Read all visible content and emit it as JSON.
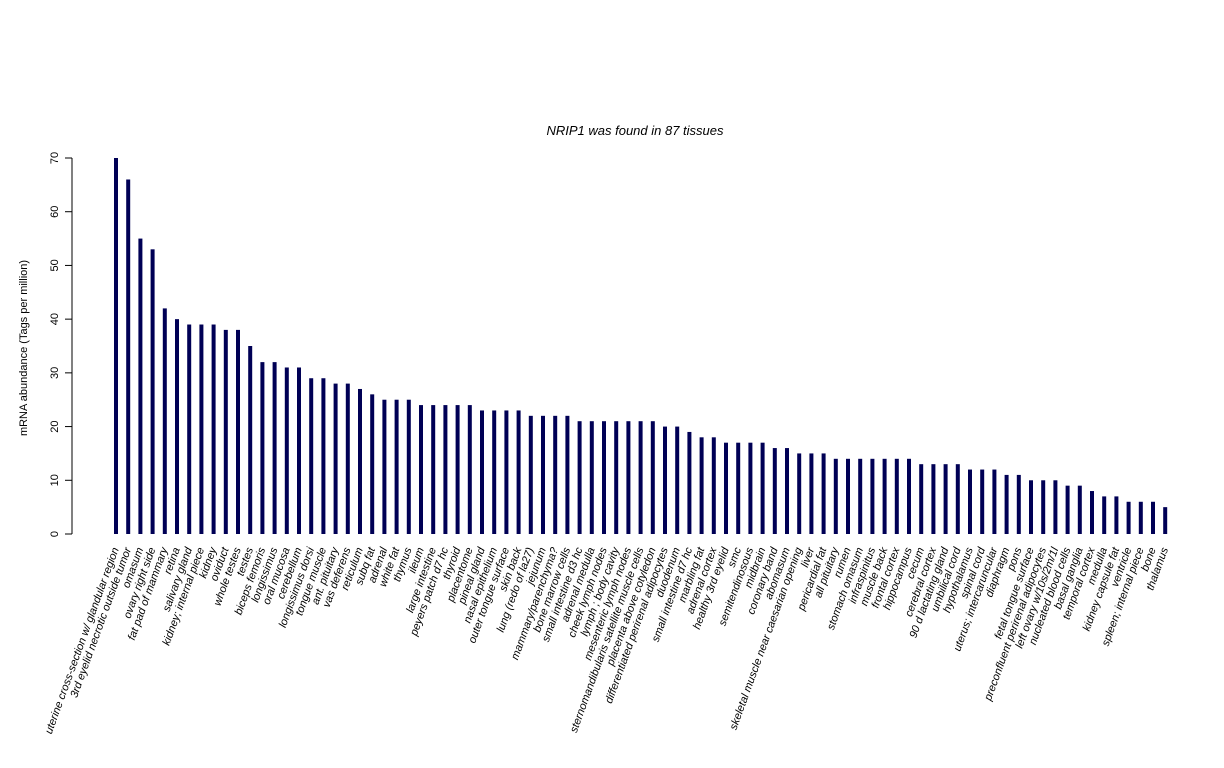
{
  "chart_data": {
    "type": "bar",
    "title": "NRIP1  was found in  87  tissues",
    "xlabel": "",
    "ylabel": "mRNA abundance (Tags per million)",
    "ylim": [
      0,
      70
    ],
    "yticks": [
      0,
      10,
      20,
      30,
      40,
      50,
      60,
      70
    ],
    "grid": false,
    "bar_color": "#000055",
    "categories": [
      "uterine cross-section w/ glandular region",
      "3rd eyelid necrotic outside tumor",
      "omasum",
      "ovary right side",
      "fat pad of mammary",
      "retina",
      "salivary gland",
      "kidney; internal piece",
      "kidney",
      "oviduct",
      "whole testes",
      "testes",
      "biceps femoris",
      "longissimus",
      "oral mucosa",
      "cerebellum",
      "longissimus dorsi",
      "tongue muscle",
      "ant. pituitary",
      "vas deferens",
      "reticulum",
      "subq fat",
      "adrenal",
      "white fat",
      "thymus",
      "ileum",
      "large intestine",
      "peyers patch d7 hc",
      "thyroid",
      "placentome",
      "pineal gland",
      "nasal epithelium",
      "outer tongue surface",
      "skin back",
      "lung (redo of la27)",
      "jejunum",
      "mammary/parenchyma?",
      "bone marrow cells",
      "small intestine d3 hc",
      "adrenal medulla",
      "cheek lymph nodes",
      "lymph ; body cavity",
      "mesenteric lymph nodes",
      "sternomandibularis satellite muscle cells",
      "placenta above cotyledon",
      "differentiated perirenal adipocytes",
      "duodenum",
      "small intestine d7 hc",
      "marbling fat",
      "adrenal cortex",
      "healthy 3rd eyelid",
      "smc",
      "semitendinosous",
      "midbrain",
      "coronary band",
      "abomasum",
      "skeletal muscle near caesarian opening",
      "liver",
      "pericardial fat",
      "all pituitary",
      "rumen",
      "stomach omasum",
      "infraspinitus",
      "muscle back",
      "frontal cortex",
      "hippocampus",
      "cecum",
      "cerebral cortex",
      "90 d lactating gland",
      "umbilical cord",
      "hypothalamus",
      "spinal cord",
      "uterus; intercaruncular",
      "diaphragm",
      "pons",
      "fetal tongue surface",
      "preconfluent perirenal adipocytes",
      "left ovary w/10s/2m/1l",
      "nucleated blood cells",
      "basal ganglia",
      "temporal cortex",
      "medulla",
      "kidney capsule fat",
      "ventricle",
      "spleen; internal piece",
      "bone",
      "thalamus"
    ],
    "values": [
      70,
      66,
      55,
      53,
      42,
      40,
      39,
      39,
      39,
      38,
      38,
      35,
      32,
      32,
      31,
      31,
      29,
      29,
      28,
      28,
      27,
      26,
      25,
      25,
      25,
      24,
      24,
      24,
      24,
      24,
      23,
      23,
      23,
      23,
      22,
      22,
      22,
      22,
      21,
      21,
      21,
      21,
      21,
      21,
      21,
      20,
      20,
      19,
      18,
      18,
      17,
      17,
      17,
      17,
      16,
      16,
      15,
      15,
      15,
      14,
      14,
      14,
      14,
      14,
      14,
      14,
      13,
      13,
      13,
      13,
      12,
      12,
      12,
      11,
      11,
      10,
      10,
      10,
      9,
      9,
      8,
      7,
      7,
      6,
      6,
      6,
      5
    ]
  }
}
